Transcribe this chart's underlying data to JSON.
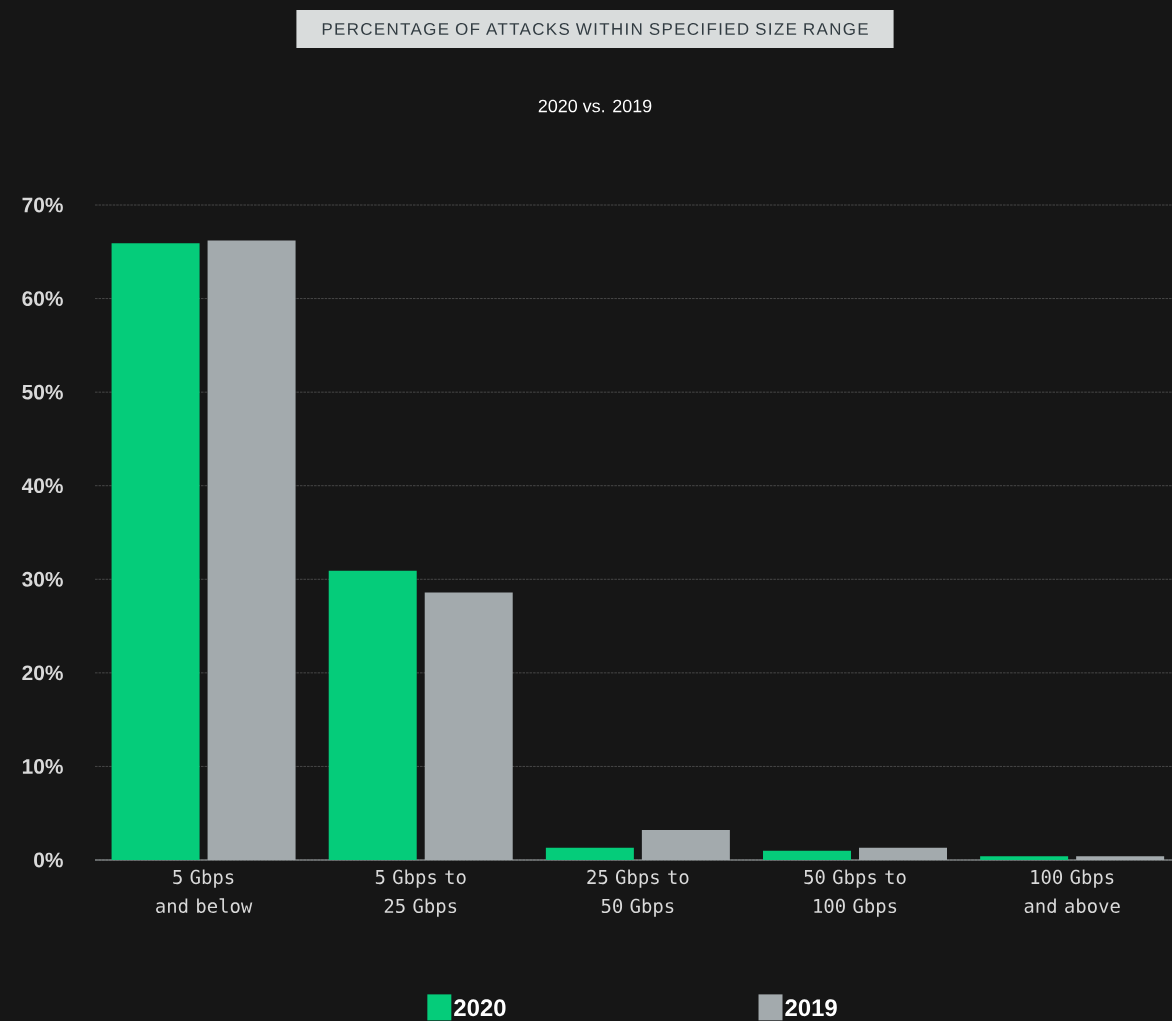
{
  "chart_data": {
    "type": "bar",
    "title": "PERCENTAGE OF ATTACKS WITHIN SPECIFIED SIZE RANGE",
    "subtitle": "2020 vs. 2019",
    "categories": [
      "5 Gbps and below",
      "5 Gbps to 25 Gbps",
      "25 Gbps to 50 Gbps",
      "50 Gbps to 100 Gbps",
      "100 Gbps and above"
    ],
    "series": [
      {
        "name": "2020",
        "color": "#05cc7a",
        "values": [
          65.9,
          30.9,
          1.3,
          1.0,
          0.4
        ]
      },
      {
        "name": "2019",
        "color": "#a3aaad",
        "values": [
          66.2,
          28.6,
          3.2,
          1.3,
          0.4
        ]
      }
    ],
    "ylim": [
      0,
      70
    ],
    "yticks": [
      {
        "value": 0,
        "label": "0%"
      },
      {
        "value": 10,
        "label": "10%"
      },
      {
        "value": 20,
        "label": "20%"
      },
      {
        "value": 30,
        "label": "30%"
      },
      {
        "value": 40,
        "label": "40%"
      },
      {
        "value": 50,
        "label": "50%"
      },
      {
        "value": 60,
        "label": "60%"
      },
      {
        "value": 70,
        "label": "70%"
      }
    ],
    "grid": "y",
    "legend": "bottom"
  }
}
